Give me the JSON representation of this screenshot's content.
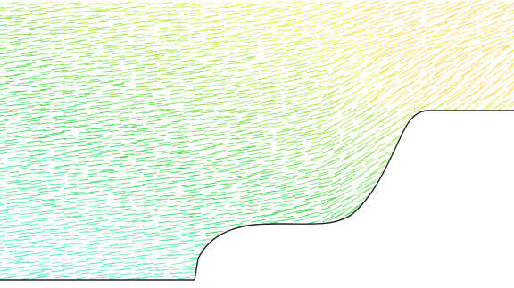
{
  "figure": {
    "kind": "velocity-vector-field",
    "background": "#ffffff",
    "boundary_color": "#222222",
    "colormap": [
      "#40d9e0",
      "#4fe3a8",
      "#2fd44a",
      "#8fe040",
      "#e4ef3a",
      "#ffd84a"
    ]
  }
}
